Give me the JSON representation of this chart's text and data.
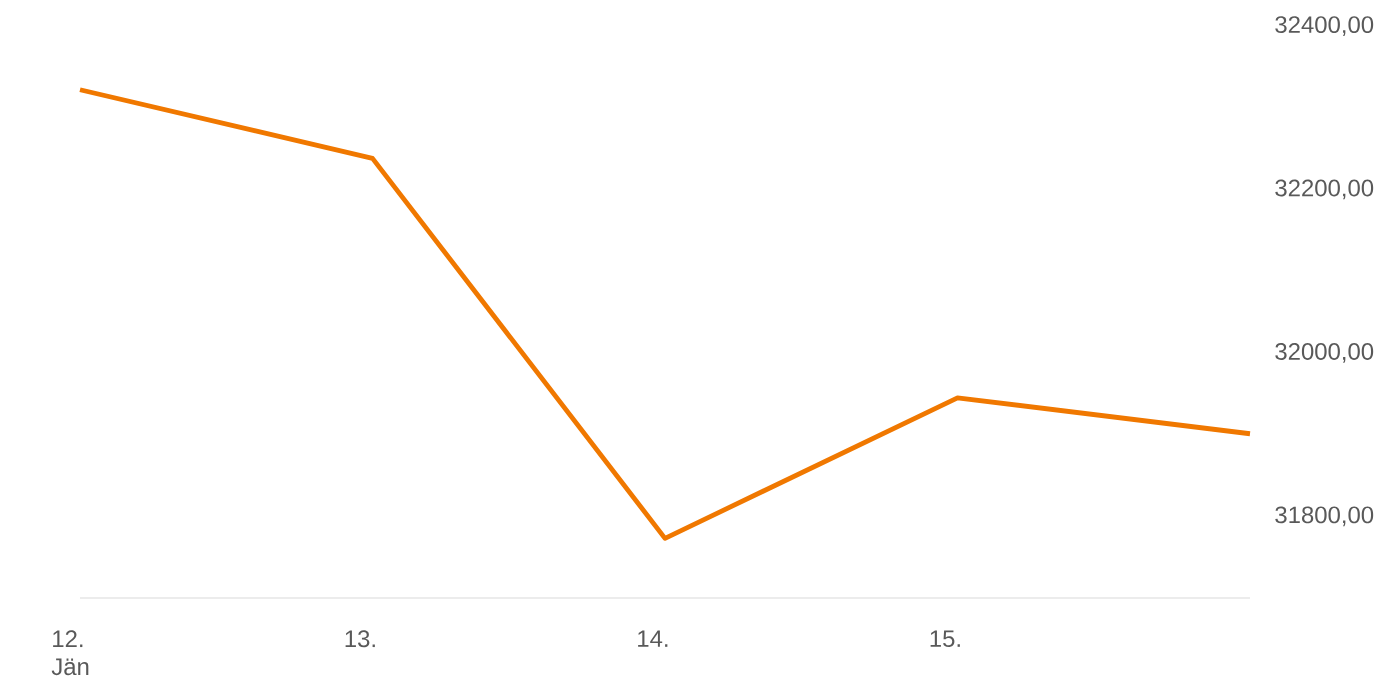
{
  "chart_data": {
    "type": "line",
    "categories": [
      "12. Jän",
      "13.",
      "14.",
      "15.",
      null
    ],
    "series": [
      {
        "color": "#f07800",
        "values": [
          32322,
          32238,
          31773,
          31945,
          31901
        ]
      }
    ],
    "ylim": [
      31700,
      32400
    ],
    "yticks": [
      {
        "value": 31800,
        "label": "31800,00"
      },
      {
        "value": 32000,
        "label": "32000,00"
      },
      {
        "value": 32200,
        "label": "32200,00"
      },
      {
        "value": 32400,
        "label": "32400,00"
      }
    ]
  }
}
